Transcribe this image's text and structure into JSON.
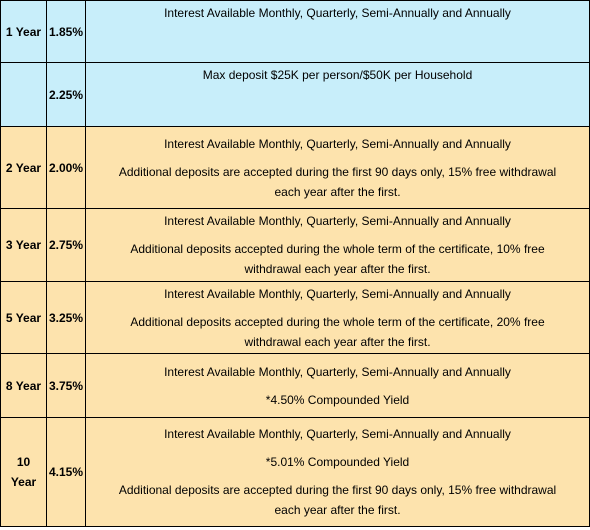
{
  "rows": [
    {
      "term": "1 Year",
      "rate": "1.85%",
      "lines": [
        "Interest Available Monthly, Quarterly, Semi-Annually and Annually"
      ]
    },
    {
      "term": "",
      "rate": "2.25%",
      "lines": [
        "Max deposit $25K per person/$50K per Household"
      ]
    },
    {
      "term": "2 Year",
      "rate": "2.00%",
      "lines": [
        "Interest Available Monthly, Quarterly, Semi-Annually and Annually",
        "Additional deposits are accepted during the first 90 days only, 15% free withdrawal",
        "each year after the first."
      ]
    },
    {
      "term": "3 Year",
      "rate": "2.75%",
      "lines": [
        "Interest Available Monthly, Quarterly, Semi-Annually and Annually",
        "Additional deposits accepted during the whole term of the certificate, 10% free",
        "withdrawal each year after the first."
      ]
    },
    {
      "term": "5 Year",
      "rate": "3.25%",
      "lines": [
        "Interest Available Monthly, Quarterly, Semi-Annually and Annually",
        "Additional deposits accepted during the whole term of the certificate, 20% free",
        "withdrawal each year after the first."
      ]
    },
    {
      "term": "8 Year",
      "rate": "3.75%",
      "lines": [
        "Interest Available Monthly, Quarterly, Semi-Annually and Annually",
        "*4.50% Compounded Yield"
      ]
    },
    {
      "term_line1": "10",
      "term_line2": "Year",
      "rate": "4.15%",
      "lines": [
        "Interest Available Monthly, Quarterly, Semi-Annually and Annually",
        "*5.01% Compounded Yield",
        "Additional deposits are accepted during the first 90 days only, 15% free withdrawal",
        "each year after the first."
      ]
    }
  ],
  "colors": {
    "blue_row": "#c8eefa",
    "tan_row": "#fde3ad",
    "border": "#000000"
  }
}
